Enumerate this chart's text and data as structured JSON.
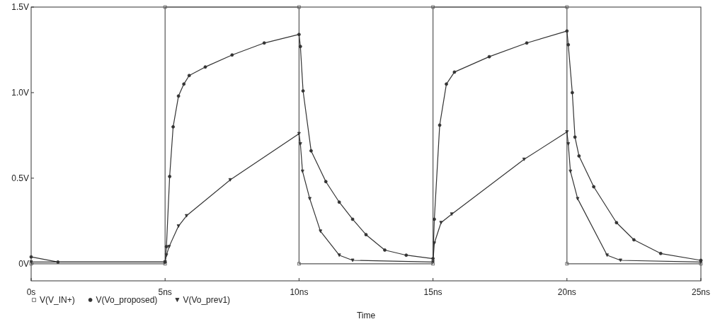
{
  "chart_data": {
    "type": "line",
    "xlabel": "Time",
    "xlim": [
      0,
      25
    ],
    "ylim": [
      -0.1,
      1.5
    ],
    "xticks": [
      {
        "value": 0,
        "label": "0s"
      },
      {
        "value": 5,
        "label": "5ns"
      },
      {
        "value": 10,
        "label": "10ns"
      },
      {
        "value": 15,
        "label": "15ns"
      },
      {
        "value": 20,
        "label": "20ns"
      },
      {
        "value": 25,
        "label": "25ns"
      }
    ],
    "yticks": [
      {
        "value": 0,
        "label": "0V"
      },
      {
        "value": 0.5,
        "label": "0.5V"
      },
      {
        "value": 1,
        "label": "1.0V"
      },
      {
        "value": 1.5,
        "label": "1.5V"
      }
    ],
    "grid": false,
    "legend": "bottom left",
    "line_style": "solid",
    "series": [
      {
        "name": "V(V_IN+)",
        "color": "#555555",
        "marker": "square",
        "x": [
          0,
          5,
          5,
          10,
          10,
          15,
          15,
          20,
          20,
          25
        ],
        "values": [
          0,
          0,
          1.5,
          1.5,
          0,
          0,
          1.5,
          1.5,
          0,
          0
        ]
      },
      {
        "name": "V(Vo_proposed)",
        "color": "#333333",
        "marker": "circle",
        "x": [
          0,
          1,
          5,
          5.05,
          5.17,
          5.3,
          5.5,
          5.7,
          5.9,
          6.5,
          7.5,
          8.7,
          10,
          10.05,
          10.15,
          10.45,
          11,
          11.5,
          12,
          12.5,
          13.2,
          14,
          15,
          15.05,
          15.25,
          15.5,
          15.8,
          17.1,
          18.5,
          20,
          20.05,
          20.2,
          20.3,
          20.45,
          21,
          21.85,
          22.5,
          23.5,
          25
        ],
        "values": [
          0.04,
          0.01,
          0.01,
          0.1,
          0.51,
          0.8,
          0.98,
          1.05,
          1.1,
          1.15,
          1.22,
          1.29,
          1.34,
          1.27,
          1.01,
          0.66,
          0.48,
          0.36,
          0.26,
          0.17,
          0.08,
          0.05,
          0.03,
          0.26,
          0.81,
          1.05,
          1.12,
          1.21,
          1.29,
          1.36,
          1.28,
          1.0,
          0.74,
          0.63,
          0.45,
          0.24,
          0.14,
          0.06,
          0.02
        ]
      },
      {
        "name": "V(Vo_prev1)",
        "color": "#333333",
        "marker": "triangle",
        "x": [
          0,
          5,
          5.05,
          5.15,
          5.5,
          5.8,
          7.43,
          10,
          10.05,
          10.13,
          10.4,
          10.8,
          11.5,
          12,
          15,
          15.05,
          15.3,
          15.7,
          18.4,
          20,
          20.05,
          20.13,
          20.4,
          21.5,
          22,
          25
        ],
        "values": [
          0.01,
          0.01,
          0.05,
          0.1,
          0.22,
          0.28,
          0.49,
          0.76,
          0.7,
          0.54,
          0.38,
          0.19,
          0.05,
          0.02,
          0.01,
          0.12,
          0.24,
          0.29,
          0.61,
          0.77,
          0.7,
          0.54,
          0.38,
          0.05,
          0.02,
          0.01
        ]
      }
    ]
  }
}
